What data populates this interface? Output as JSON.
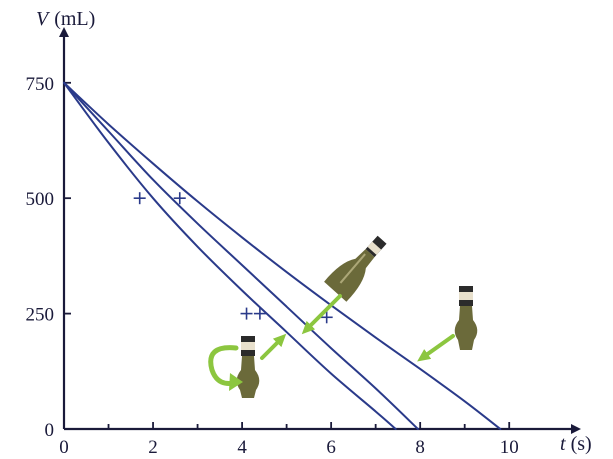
{
  "chart_data": {
    "type": "line",
    "xlabel": "t",
    "xunit": "(s)",
    "ylabel": "V",
    "yunit": "(mL)",
    "xlim": [
      0,
      11.5
    ],
    "ylim": [
      0,
      860
    ],
    "x_ticks": [
      0,
      2,
      4,
      6,
      8,
      10
    ],
    "x_minor_ticks": [
      1,
      3,
      5,
      7,
      9
    ],
    "y_ticks": [
      0,
      250,
      500,
      750
    ],
    "grid": false,
    "legend": "none",
    "series": [
      {
        "bottle": "upright",
        "x": [
          0,
          1,
          2,
          3,
          4,
          5,
          6,
          7,
          8,
          9,
          9.8
        ],
        "y": [
          750,
          660,
          575,
          493,
          415,
          340,
          268,
          198,
          130,
          60,
          0
        ]
      },
      {
        "bottle": "tilted",
        "x": [
          0,
          1,
          2,
          3,
          4,
          5,
          6,
          7,
          7.95
        ],
        "y": [
          750,
          645,
          540,
          445,
          355,
          265,
          175,
          88,
          0
        ]
      },
      {
        "bottle": "swirled",
        "x": [
          0,
          1,
          2,
          3,
          4,
          5,
          6,
          7,
          7.45
        ],
        "y": [
          750,
          620,
          500,
          395,
          300,
          210,
          120,
          38,
          0
        ]
      }
    ],
    "markers": [
      {
        "x": 1.7,
        "y": 500
      },
      {
        "x": 2.6,
        "y": 500
      },
      {
        "x": 4.1,
        "y": 250
      },
      {
        "x": 4.4,
        "y": 250
      },
      {
        "x": 5.9,
        "y": 242
      }
    ]
  },
  "colors": {
    "axis": "#1a1a3a",
    "curve": "#2a3a8a",
    "arrow": "#8cc63f",
    "bottle_glass": "#6b6a3a",
    "bottle_cap": "#2b2b2b",
    "bottle_label": "#e8e0cc"
  },
  "icons": [
    "upright-bottle-icon",
    "tilted-bottle-icon",
    "swirl-bottle-icon",
    "swirl-arrow-icon"
  ]
}
